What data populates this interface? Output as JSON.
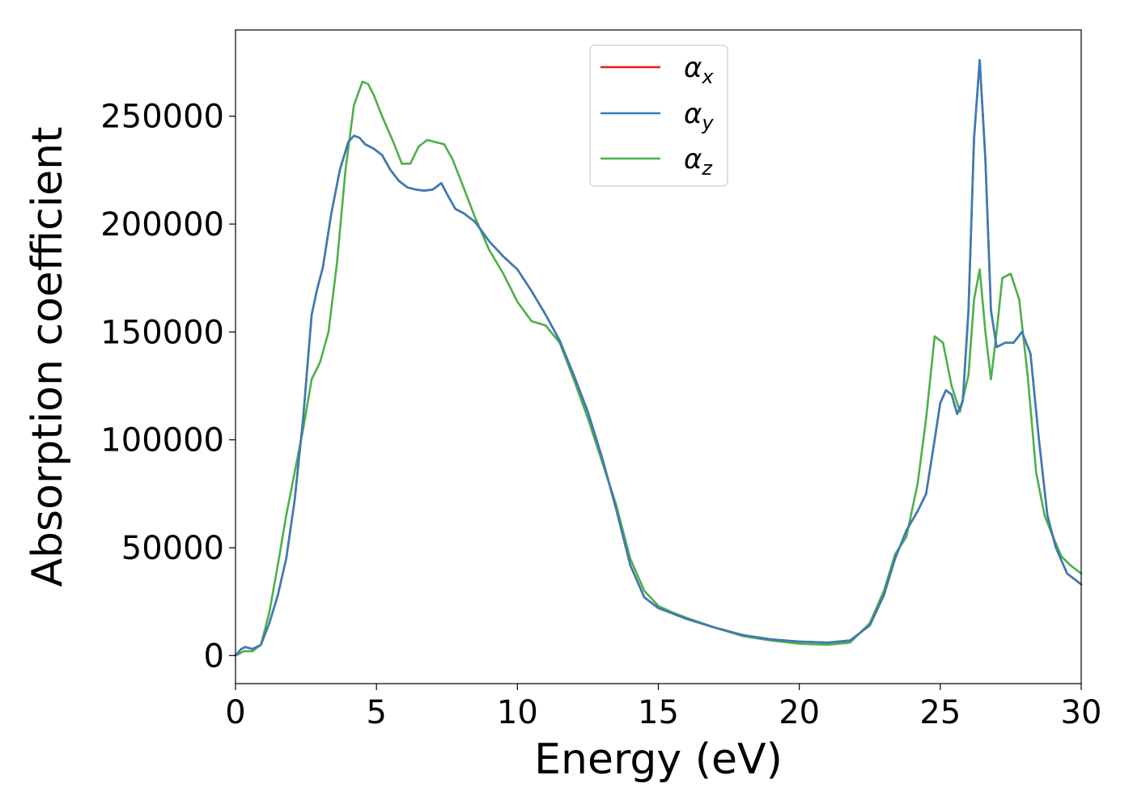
{
  "chart_data": {
    "type": "line",
    "title": "",
    "xlabel": "Energy (eV)",
    "ylabel": "Absorption coefficient",
    "xlim": [
      0,
      30
    ],
    "ylim": [
      -13000,
      290000
    ],
    "x_ticks": [
      "0",
      "5",
      "10",
      "15",
      "20",
      "25",
      "30"
    ],
    "x_tick_values": [
      0,
      5,
      10,
      15,
      20,
      25,
      30
    ],
    "y_ticks": [
      "0",
      "50000",
      "100000",
      "150000",
      "200000",
      "250000"
    ],
    "y_tick_values": [
      0,
      50000,
      100000,
      150000,
      200000,
      250000
    ],
    "grid": false,
    "legend_position": "top-center",
    "series": [
      {
        "name": "α",
        "subscript": "x",
        "color": "#e41a1c",
        "x": [
          0,
          0.2,
          0.35,
          0.6,
          0.9,
          1.2,
          1.5,
          1.8,
          2.1,
          2.4,
          2.7,
          2.9,
          3.1,
          3.4,
          3.7,
          4.0,
          4.2,
          4.4,
          4.6,
          4.9,
          5.2,
          5.5,
          5.8,
          6.1,
          6.4,
          6.7,
          7.0,
          7.3,
          7.5,
          7.8,
          8.1,
          8.5,
          9.0,
          9.5,
          10.0,
          10.5,
          11.0,
          11.5,
          12.0,
          12.5,
          13.0,
          13.5,
          14.0,
          14.5,
          15.0,
          15.5,
          16.0,
          17.0,
          18.0,
          19.0,
          20.0,
          21.0,
          21.8,
          22.5,
          23.0,
          23.4,
          23.8,
          24.2,
          24.5,
          24.8,
          25.0,
          25.2,
          25.4,
          25.6,
          25.8,
          26.0,
          26.2,
          26.4,
          26.6,
          26.8,
          27.0,
          27.3,
          27.6,
          27.9,
          28.2,
          28.5,
          28.8,
          29.1,
          29.5,
          30.0
        ],
        "values": [
          0,
          3000,
          4000,
          3000,
          5000,
          15000,
          28000,
          45000,
          72000,
          110000,
          158000,
          170000,
          180000,
          205000,
          225000,
          238000,
          241000,
          240000,
          237000,
          235000,
          232000,
          225000,
          220000,
          217000,
          216000,
          215500,
          216000,
          219000,
          214000,
          207000,
          205000,
          201000,
          192000,
          185000,
          179000,
          169000,
          158000,
          146000,
          130000,
          113000,
          92000,
          68000,
          42000,
          27000,
          22000,
          19500,
          17000,
          13000,
          9500,
          7500,
          6500,
          6000,
          7000,
          14000,
          28000,
          45000,
          58000,
          67000,
          75000,
          100000,
          117000,
          123000,
          121000,
          112000,
          118000,
          160000,
          240000,
          276000,
          230000,
          160000,
          143000,
          145000,
          145000,
          150000,
          140000,
          100000,
          65000,
          50000,
          38000,
          33000
        ]
      },
      {
        "name": "α",
        "subscript": "y",
        "color": "#377eb8",
        "x": [
          0,
          0.2,
          0.35,
          0.6,
          0.9,
          1.2,
          1.5,
          1.8,
          2.1,
          2.4,
          2.7,
          2.9,
          3.1,
          3.4,
          3.7,
          4.0,
          4.2,
          4.4,
          4.6,
          4.9,
          5.2,
          5.5,
          5.8,
          6.1,
          6.4,
          6.7,
          7.0,
          7.3,
          7.5,
          7.8,
          8.1,
          8.5,
          9.0,
          9.5,
          10.0,
          10.5,
          11.0,
          11.5,
          12.0,
          12.5,
          13.0,
          13.5,
          14.0,
          14.5,
          15.0,
          15.5,
          16.0,
          17.0,
          18.0,
          19.0,
          20.0,
          21.0,
          21.8,
          22.5,
          23.0,
          23.4,
          23.8,
          24.2,
          24.5,
          24.8,
          25.0,
          25.2,
          25.4,
          25.6,
          25.8,
          26.0,
          26.2,
          26.4,
          26.6,
          26.8,
          27.0,
          27.3,
          27.6,
          27.9,
          28.2,
          28.5,
          28.8,
          29.1,
          29.5,
          30.0
        ],
        "values": [
          0,
          3000,
          4000,
          3000,
          5000,
          15000,
          28000,
          45000,
          72000,
          110000,
          158000,
          170000,
          180000,
          205000,
          225000,
          238000,
          241000,
          240000,
          237000,
          235000,
          232000,
          225000,
          220000,
          217000,
          216000,
          215500,
          216000,
          219000,
          214000,
          207000,
          205000,
          201000,
          192000,
          185000,
          179000,
          169000,
          158000,
          146000,
          130000,
          113000,
          92000,
          68000,
          42000,
          27000,
          22000,
          19500,
          17000,
          13000,
          9500,
          7500,
          6500,
          6000,
          7000,
          14000,
          28000,
          45000,
          58000,
          67000,
          75000,
          100000,
          117000,
          123000,
          121000,
          112000,
          118000,
          160000,
          240000,
          276000,
          230000,
          160000,
          143000,
          145000,
          145000,
          150000,
          140000,
          100000,
          65000,
          50000,
          38000,
          33000
        ]
      },
      {
        "name": "α",
        "subscript": "z",
        "color": "#4daf4a",
        "x": [
          0,
          0.3,
          0.6,
          0.9,
          1.2,
          1.5,
          1.8,
          2.1,
          2.4,
          2.7,
          3.0,
          3.3,
          3.6,
          3.9,
          4.2,
          4.5,
          4.7,
          4.9,
          5.2,
          5.6,
          5.9,
          6.2,
          6.5,
          6.8,
          7.1,
          7.4,
          7.7,
          8.0,
          8.5,
          9.0,
          9.5,
          10.0,
          10.5,
          11.0,
          11.5,
          12.0,
          12.5,
          13.0,
          13.5,
          14.0,
          14.5,
          15.0,
          15.5,
          16.0,
          17.0,
          18.0,
          19.0,
          20.0,
          21.0,
          21.8,
          22.5,
          23.0,
          23.4,
          23.8,
          24.2,
          24.5,
          24.8,
          25.1,
          25.4,
          25.7,
          26.0,
          26.2,
          26.4,
          26.6,
          26.8,
          27.0,
          27.2,
          27.5,
          27.8,
          28.1,
          28.4,
          28.7,
          29.0,
          29.3,
          29.6,
          30.0
        ],
        "values": [
          0,
          2000,
          2000,
          5000,
          20000,
          42000,
          65000,
          85000,
          105000,
          128000,
          136000,
          150000,
          182000,
          225000,
          255000,
          266000,
          265000,
          260000,
          250000,
          238000,
          228000,
          228000,
          236000,
          239000,
          238000,
          237000,
          230000,
          220000,
          203000,
          188000,
          177000,
          164000,
          155000,
          153000,
          145000,
          128000,
          110000,
          90000,
          70000,
          45000,
          30000,
          23000,
          20000,
          17500,
          13000,
          9000,
          7000,
          5500,
          5000,
          6000,
          15000,
          30000,
          47000,
          55000,
          80000,
          110000,
          148000,
          145000,
          125000,
          113000,
          130000,
          165000,
          179000,
          150000,
          128000,
          150000,
          175000,
          177000,
          165000,
          130000,
          85000,
          65000,
          55000,
          46000,
          42000,
          38000
        ]
      }
    ]
  }
}
